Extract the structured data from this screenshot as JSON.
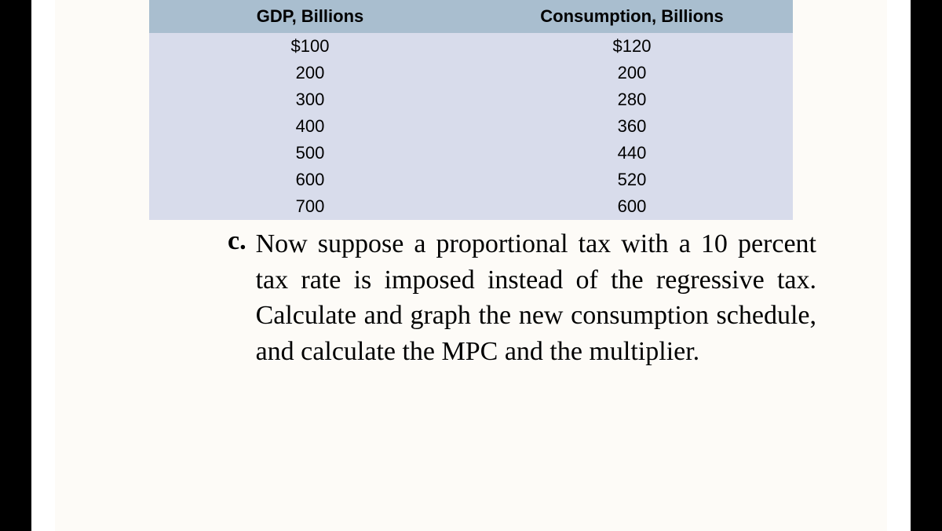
{
  "table": {
    "headers": [
      "GDP, Billions",
      "Consumption, Billions"
    ],
    "rows": [
      [
        "$100",
        "$120"
      ],
      [
        "200",
        "200"
      ],
      [
        "300",
        "280"
      ],
      [
        "400",
        "360"
      ],
      [
        "500",
        "440"
      ],
      [
        "600",
        "520"
      ],
      [
        "700",
        "600"
      ]
    ],
    "header_bg": "#a9becf",
    "body_bg": "#d8dceb",
    "text_color": "#000000",
    "header_fontsize": 22,
    "cell_fontsize": 22
  },
  "question": {
    "label": "c.",
    "text": "Now suppose a proportional tax with a 10 percent tax rate is imposed instead of the regressive tax. Calculate and graph the new consumption schedule, and calculate the MPC and the multiplier."
  },
  "page": {
    "background_color": "#fdfbf7",
    "bar_color": "#000000",
    "gap_color": "#ffffff"
  }
}
